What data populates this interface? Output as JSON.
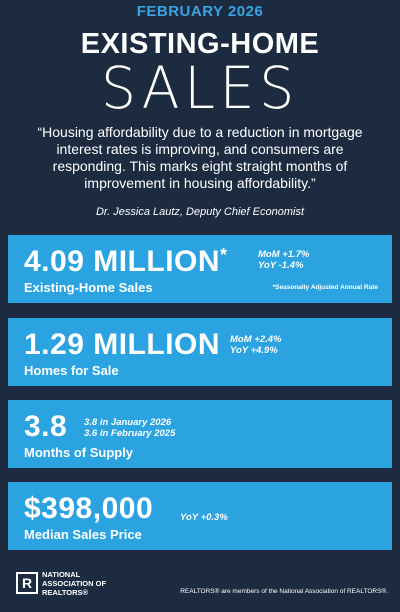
{
  "header": {
    "date": "FEBRUARY 2026",
    "title_line1": "EXISTING-HOME",
    "title_line2": "SALES"
  },
  "quote": {
    "text": "“Housing affordability due to a reduction in mortgage interest rates is improving, and consumers are responding. This marks eight straight months of improvement in housing affordability.”",
    "attribution": "Dr. Jessica Lautz, Deputy Chief Economist"
  },
  "cards": [
    {
      "value": "4.09 MILLION",
      "marker": "*",
      "notes": [
        "MoM +1.7%",
        "YoY -1.4%"
      ],
      "footnote": "*Seasonally Adjusted Annual Rate",
      "label": "Existing-Home Sales"
    },
    {
      "value": "1.29 MILLION",
      "notes": [
        "MoM +2.4%",
        "YoY +4.9%"
      ],
      "label": "Homes for Sale"
    },
    {
      "value": "3.8",
      "notes": [
        "3.8 in January 2026",
        "3.6 in February 2025"
      ],
      "label": "Months of Supply"
    },
    {
      "value": "$398,000",
      "notes": [
        "YoY +0.3%"
      ],
      "label": "Median Sales Price"
    }
  ],
  "footer": {
    "logo_letter": "R",
    "logo_lines": [
      "NATIONAL",
      "ASSOCIATION OF",
      "REALTORS®"
    ],
    "disclaimer": "REALTORS® are members of the National Association of REALTORS®."
  }
}
